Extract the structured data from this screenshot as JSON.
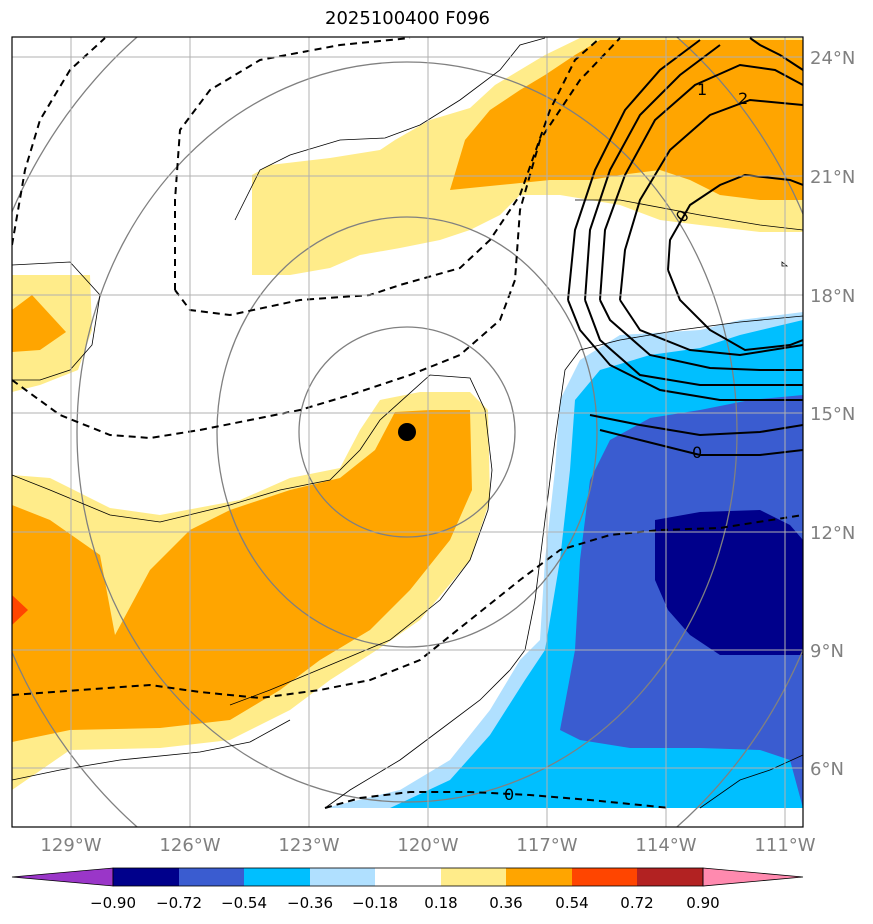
{
  "title": "2025100400 F096",
  "lon_labels": [
    "129°W",
    "126°W",
    "123°W",
    "120°W",
    "117°W",
    "114°W",
    "111°W"
  ],
  "lat_labels": [
    "6°N",
    "9°N",
    "12°N",
    "15°N",
    "18°N",
    "21°N",
    "24°N"
  ],
  "colorbar": {
    "tick_labels": [
      "−0.90",
      "−0.72",
      "−0.54",
      "−0.36",
      "−0.18",
      "0.18",
      "0.36",
      "0.54",
      "0.72",
      "0.90"
    ],
    "colors": [
      "#9a36c8",
      "#00008b",
      "#3a5cd0",
      "#00bfff",
      "#b0e0ff",
      "#ffffff",
      "#ffec8a",
      "#ffa500",
      "#ff4500",
      "#b22222",
      "#ff8aaf"
    ]
  },
  "contour_labels": [
    "1",
    "2",
    "0",
    "0",
    "0"
  ],
  "storm_marker": "center-dot"
}
